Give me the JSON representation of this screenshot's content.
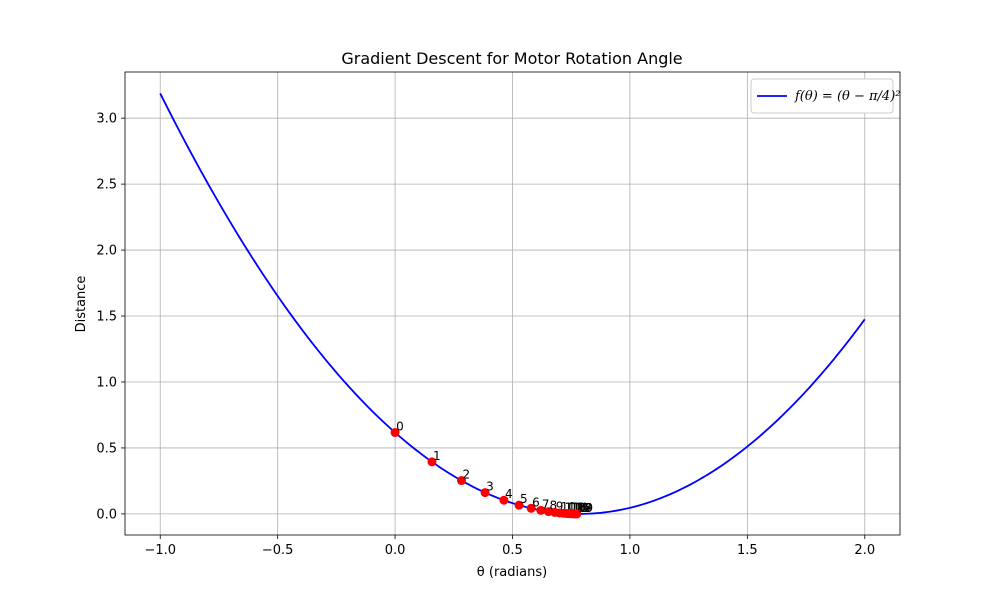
{
  "chart_data": {
    "type": "line",
    "title": "Gradient Descent for Motor Rotation Angle",
    "xlabel": "θ (radians)",
    "ylabel": "Distance",
    "xlim": [
      -1.15,
      2.15
    ],
    "ylim": [
      -0.16,
      3.35
    ],
    "xticks": [
      -1.0,
      -0.5,
      0.0,
      0.5,
      1.0,
      1.5,
      2.0
    ],
    "xtick_labels": [
      "−1.0",
      "−0.5",
      "0.0",
      "0.5",
      "1.0",
      "1.5",
      "2.0"
    ],
    "yticks": [
      0.0,
      0.5,
      1.0,
      1.5,
      2.0,
      2.5,
      3.0
    ],
    "ytick_labels": [
      "0.0",
      "0.5",
      "1.0",
      "1.5",
      "2.0",
      "2.5",
      "3.0"
    ],
    "grid": true,
    "legend_position": "top-right",
    "curve": {
      "name": "f(θ) = (θ − π/4)²",
      "x_range": [
        -1.0,
        2.0
      ],
      "color": "#0000ff"
    },
    "descent_points": {
      "color": "#ff0000",
      "x": [
        0.0,
        0.1571,
        0.2827,
        0.3832,
        0.4636,
        0.5279,
        0.5794,
        0.6206,
        0.6535,
        0.6799,
        0.701,
        0.7178,
        0.7313,
        0.7421,
        0.7507,
        0.7576,
        0.7632,
        0.7676,
        0.7711,
        0.7739
      ],
      "y": [
        0.6169,
        0.3948,
        0.2527,
        0.1617,
        0.1035,
        0.0662,
        0.0424,
        0.0271,
        0.0174,
        0.0111,
        0.0071,
        0.0046,
        0.0029,
        0.0019,
        0.0012,
        0.0008,
        0.0005,
        0.0003,
        0.0002,
        0.0001
      ],
      "labels": [
        "0",
        "1",
        "2",
        "3",
        "4",
        "5",
        "6",
        "7",
        "8",
        "9",
        "10",
        "11",
        "12",
        "13",
        "14",
        "15",
        "16",
        "17",
        "18",
        "19"
      ]
    }
  }
}
